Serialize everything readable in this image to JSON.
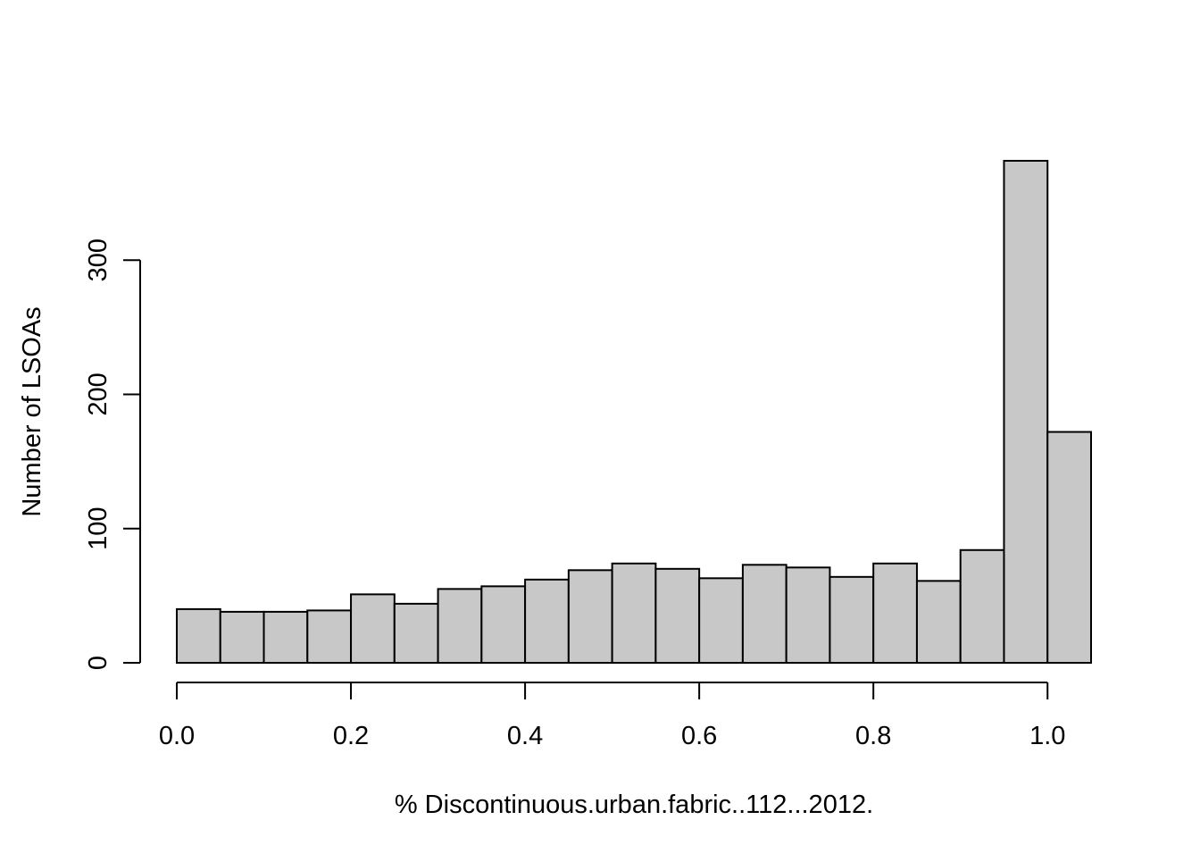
{
  "chart_data": {
    "type": "bar",
    "subtype": "histogram",
    "title": "",
    "xlabel": "% Discontinuous.urban.fabric..112...2012.",
    "ylabel": "Number of LSOAs",
    "bin_width": 0.05,
    "bins": [
      {
        "start": 0.0,
        "end": 0.05,
        "count": 40
      },
      {
        "start": 0.05,
        "end": 0.1,
        "count": 38
      },
      {
        "start": 0.1,
        "end": 0.15,
        "count": 38
      },
      {
        "start": 0.15,
        "end": 0.2,
        "count": 39
      },
      {
        "start": 0.2,
        "end": 0.25,
        "count": 51
      },
      {
        "start": 0.25,
        "end": 0.3,
        "count": 44
      },
      {
        "start": 0.3,
        "end": 0.35,
        "count": 55
      },
      {
        "start": 0.35,
        "end": 0.4,
        "count": 57
      },
      {
        "start": 0.4,
        "end": 0.45,
        "count": 62
      },
      {
        "start": 0.45,
        "end": 0.5,
        "count": 69
      },
      {
        "start": 0.5,
        "end": 0.55,
        "count": 74
      },
      {
        "start": 0.55,
        "end": 0.6,
        "count": 70
      },
      {
        "start": 0.6,
        "end": 0.65,
        "count": 63
      },
      {
        "start": 0.65,
        "end": 0.7,
        "count": 73
      },
      {
        "start": 0.7,
        "end": 0.75,
        "count": 71
      },
      {
        "start": 0.75,
        "end": 0.8,
        "count": 64
      },
      {
        "start": 0.8,
        "end": 0.85,
        "count": 74
      },
      {
        "start": 0.85,
        "end": 0.9,
        "count": 61
      },
      {
        "start": 0.9,
        "end": 0.95,
        "count": 84
      },
      {
        "start": 0.95,
        "end": 1.0,
        "count": 374
      },
      {
        "start": 1.0,
        "end": 1.05,
        "count": 172
      }
    ],
    "x_ticks": [
      0.0,
      0.2,
      0.4,
      0.6,
      0.8,
      1.0
    ],
    "x_tick_labels": [
      "0.0",
      "0.2",
      "0.4",
      "0.6",
      "0.8",
      "1.0"
    ],
    "y_ticks": [
      0,
      100,
      200,
      300
    ],
    "y_tick_labels": [
      "0",
      "100",
      "200",
      "300"
    ],
    "xlim": [
      0.0,
      1.05
    ],
    "ylim": [
      0,
      374
    ],
    "grid": false,
    "legend": "none",
    "bar_fill": "#c8c8c8",
    "bar_stroke": "#000000"
  }
}
